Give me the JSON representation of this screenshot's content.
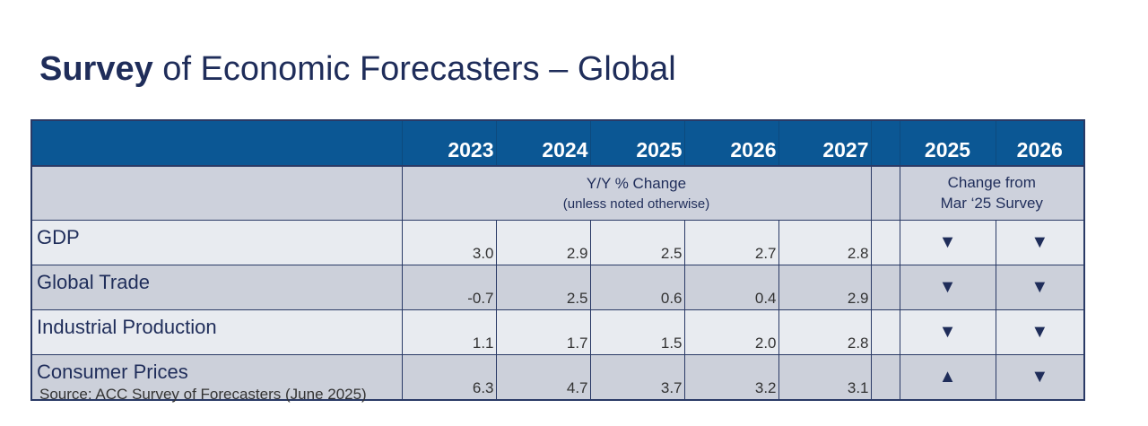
{
  "title": {
    "bold": "Survey",
    "rest": " of Economic Forecasters – Global"
  },
  "header": {
    "years": [
      "2023",
      "2024",
      "2025",
      "2026",
      "2027"
    ],
    "change_years": [
      "2025",
      "2026"
    ]
  },
  "subheader": {
    "main": "Y/Y % Change",
    "note": "(unless noted otherwise)",
    "change_line1": "Change from",
    "change_line2": "Mar ‘25 Survey"
  },
  "rows": [
    {
      "label": "GDP",
      "values": [
        "3.0",
        "2.9",
        "2.5",
        "2.7",
        "2.8"
      ],
      "changes": [
        "down",
        "down"
      ]
    },
    {
      "label": "Global Trade",
      "values": [
        "-0.7",
        "2.5",
        "0.6",
        "0.4",
        "2.9"
      ],
      "changes": [
        "down",
        "down"
      ]
    },
    {
      "label": "Industrial Production",
      "values": [
        "1.1",
        "1.7",
        "1.5",
        "2.0",
        "2.8"
      ],
      "changes": [
        "down",
        "down"
      ]
    },
    {
      "label": "Consumer Prices",
      "values": [
        "6.3",
        "4.7",
        "3.7",
        "3.2",
        "3.1"
      ],
      "changes": [
        "up",
        "down"
      ]
    }
  ],
  "icons": {
    "up": "▲",
    "down": "▼"
  },
  "colors": {
    "header_bg": "#0b5794",
    "text": "#1f2d5a",
    "row_light": "#e8ebf0",
    "row_dark": "#ccd0da"
  },
  "source": "Source: ACC Survey of Forecasters (June 2025)"
}
